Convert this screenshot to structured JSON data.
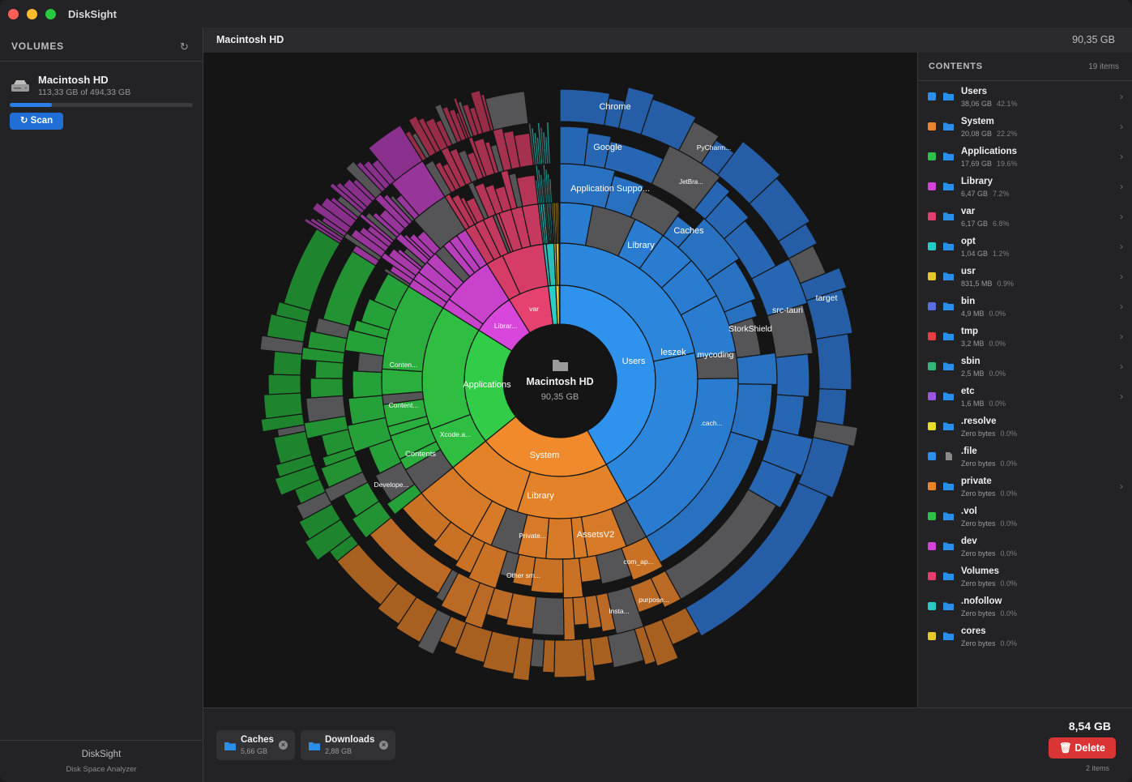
{
  "app": {
    "title": "DiskSight"
  },
  "sidebar": {
    "heading": "VOLUMES",
    "volume": {
      "name": "Macintosh HD",
      "usage": "113,33 GB of 494,33 GB",
      "fill_fraction": 0.229
    },
    "scan_label": "Scan",
    "footer_title": "DiskSight",
    "footer_subtitle": "Disk Space Analyzer"
  },
  "header": {
    "title": "Macintosh HD",
    "size": "90,35 GB"
  },
  "chart": {
    "center_title": "Macintosh HD",
    "center_size": "90,35 GB",
    "labels": {
      "users": "Users",
      "leszek": "leszek",
      "library_u": "Library",
      "mycoding": "mycoding",
      "app_support": "Application Suppo...",
      "google": "Google",
      "chrome": "Chrome",
      "caches": "Caches",
      "jetbra": "JetBra...",
      "pycharm": "PyCharm...",
      "storkshield": "StorkShield",
      "src_tauri": "src-tauri",
      "target": "target",
      "cach": ".cach...",
      "system": "System",
      "library_s": "Library",
      "assetsv2": "AssetsV2",
      "private": "Private...",
      "other_sm": "Other sm...",
      "com_ap": "com_ap...",
      "purpose": "purpose...",
      "insta": "Insta...",
      "applications": "Applications",
      "content1": "Conten...",
      "content2": "Content...",
      "contents": "Contents",
      "xcode": "Xcode.a...",
      "develope": "Develope...",
      "var": "var",
      "librar": "Librar..."
    }
  },
  "contents": {
    "heading": "CONTENTS",
    "count": "19 items",
    "items": [
      {
        "name": "Users",
        "size": "38,06 GB",
        "pct": "42.1%",
        "color": "#2f8fe8",
        "icon": "folder-icon",
        "chevron": true
      },
      {
        "name": "System",
        "size": "20,08 GB",
        "pct": "22.2%",
        "color": "#e8842a",
        "icon": "folder-icon",
        "chevron": true
      },
      {
        "name": "Applications",
        "size": "17,69 GB",
        "pct": "19.6%",
        "color": "#2ec04a",
        "icon": "folder-icon",
        "chevron": true
      },
      {
        "name": "Library",
        "size": "6,47 GB",
        "pct": "7.2%",
        "color": "#d243d6",
        "icon": "folder-icon",
        "chevron": true
      },
      {
        "name": "var",
        "size": "6,17 GB",
        "pct": "6.8%",
        "color": "#e23f6f",
        "icon": "folder-icon",
        "chevron": true
      },
      {
        "name": "opt",
        "size": "1,04 GB",
        "pct": "1.2%",
        "color": "#27c9c4",
        "icon": "folder-icon",
        "chevron": true
      },
      {
        "name": "usr",
        "size": "831,5 MB",
        "pct": "0.9%",
        "color": "#e8c72a",
        "icon": "folder-icon",
        "chevron": true
      },
      {
        "name": "bin",
        "size": "4,9 MB",
        "pct": "0.0%",
        "color": "#5a6ee0",
        "icon": "folder-icon",
        "chevron": true
      },
      {
        "name": "tmp",
        "size": "3,2 MB",
        "pct": "0.0%",
        "color": "#e23f3f",
        "icon": "folder-icon",
        "chevron": true
      },
      {
        "name": "sbin",
        "size": "2,5 MB",
        "pct": "0.0%",
        "color": "#2fb87a",
        "icon": "folder-icon",
        "chevron": true
      },
      {
        "name": "etc",
        "size": "1,6 MB",
        "pct": "0.0%",
        "color": "#9b56e0",
        "icon": "folder-icon",
        "chevron": true
      },
      {
        "name": ".resolve",
        "size": "Zero bytes",
        "pct": "0.0%",
        "color": "#e8de2a",
        "icon": "folder-icon",
        "chevron": false
      },
      {
        "name": ".file",
        "size": "Zero bytes",
        "pct": "0.0%",
        "color": "#2f8fe8",
        "icon": "file-icon",
        "chevron": false
      },
      {
        "name": "private",
        "size": "Zero bytes",
        "pct": "0.0%",
        "color": "#e8842a",
        "icon": "folder-icon",
        "chevron": true
      },
      {
        "name": ".vol",
        "size": "Zero bytes",
        "pct": "0.0%",
        "color": "#2ec04a",
        "icon": "folder-icon",
        "chevron": false
      },
      {
        "name": "dev",
        "size": "Zero bytes",
        "pct": "0.0%",
        "color": "#d243d6",
        "icon": "folder-icon",
        "chevron": false
      },
      {
        "name": "Volumes",
        "size": "Zero bytes",
        "pct": "0.0%",
        "color": "#e23f6f",
        "icon": "folder-icon",
        "chevron": false
      },
      {
        "name": ".nofollow",
        "size": "Zero bytes",
        "pct": "0.0%",
        "color": "#27c9c4",
        "icon": "folder-icon",
        "chevron": false
      },
      {
        "name": "cores",
        "size": "Zero bytes",
        "pct": "0.0%",
        "color": "#e8c72a",
        "icon": "folder-icon",
        "chevron": false
      }
    ]
  },
  "selection": {
    "chips": [
      {
        "name": "Caches",
        "size": "5,66 GB"
      },
      {
        "name": "Downloads",
        "size": "2,88 GB"
      }
    ],
    "total": "8,54 GB",
    "delete_label": "Delete",
    "items_label": "2 items"
  }
}
